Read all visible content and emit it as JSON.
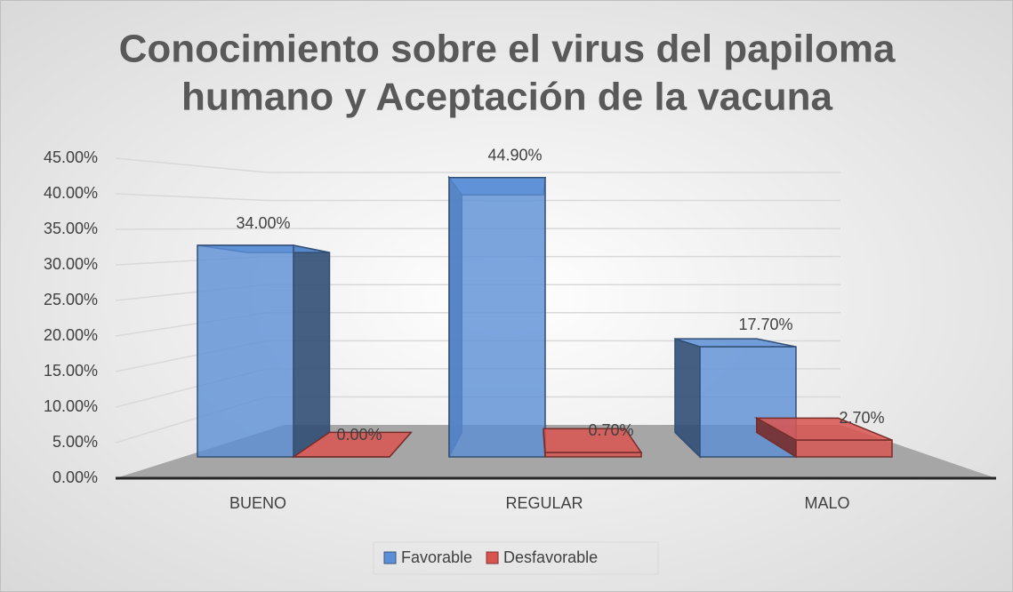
{
  "chart_data": {
    "type": "bar3d",
    "title": [
      "Conocimiento sobre el virus del papiloma",
      "humano y Aceptación de la vacuna"
    ],
    "categories": [
      "BUENO",
      "REGULAR",
      "MALO"
    ],
    "series": [
      {
        "name": "Favorable",
        "color": "#5b8fd6",
        "values": [
          34,
          44.9,
          17.7
        ],
        "value_labels": [
          "34.00%",
          "44.90%",
          "17.70%"
        ]
      },
      {
        "name": "Desfavorable",
        "color": "#d9534f",
        "values": [
          0,
          0.7,
          2.7
        ],
        "value_labels": [
          "0.00%",
          "0.70%",
          "2.70%"
        ]
      }
    ],
    "ylim": [
      0,
      45
    ],
    "yticks": [
      {
        "value": 0,
        "label": "0.00%"
      },
      {
        "value": 5,
        "label": "5.00%"
      },
      {
        "value": 10,
        "label": "10.00%"
      },
      {
        "value": 15,
        "label": "15.00%"
      },
      {
        "value": 20,
        "label": "20.00%"
      },
      {
        "value": 25,
        "label": "25.00%"
      },
      {
        "value": 30,
        "label": "30.00%"
      },
      {
        "value": 35,
        "label": "35.00%"
      },
      {
        "value": 40,
        "label": "40.00%"
      },
      {
        "value": 45,
        "label": "45.00%"
      }
    ],
    "grid": true,
    "legend": "bottom"
  }
}
